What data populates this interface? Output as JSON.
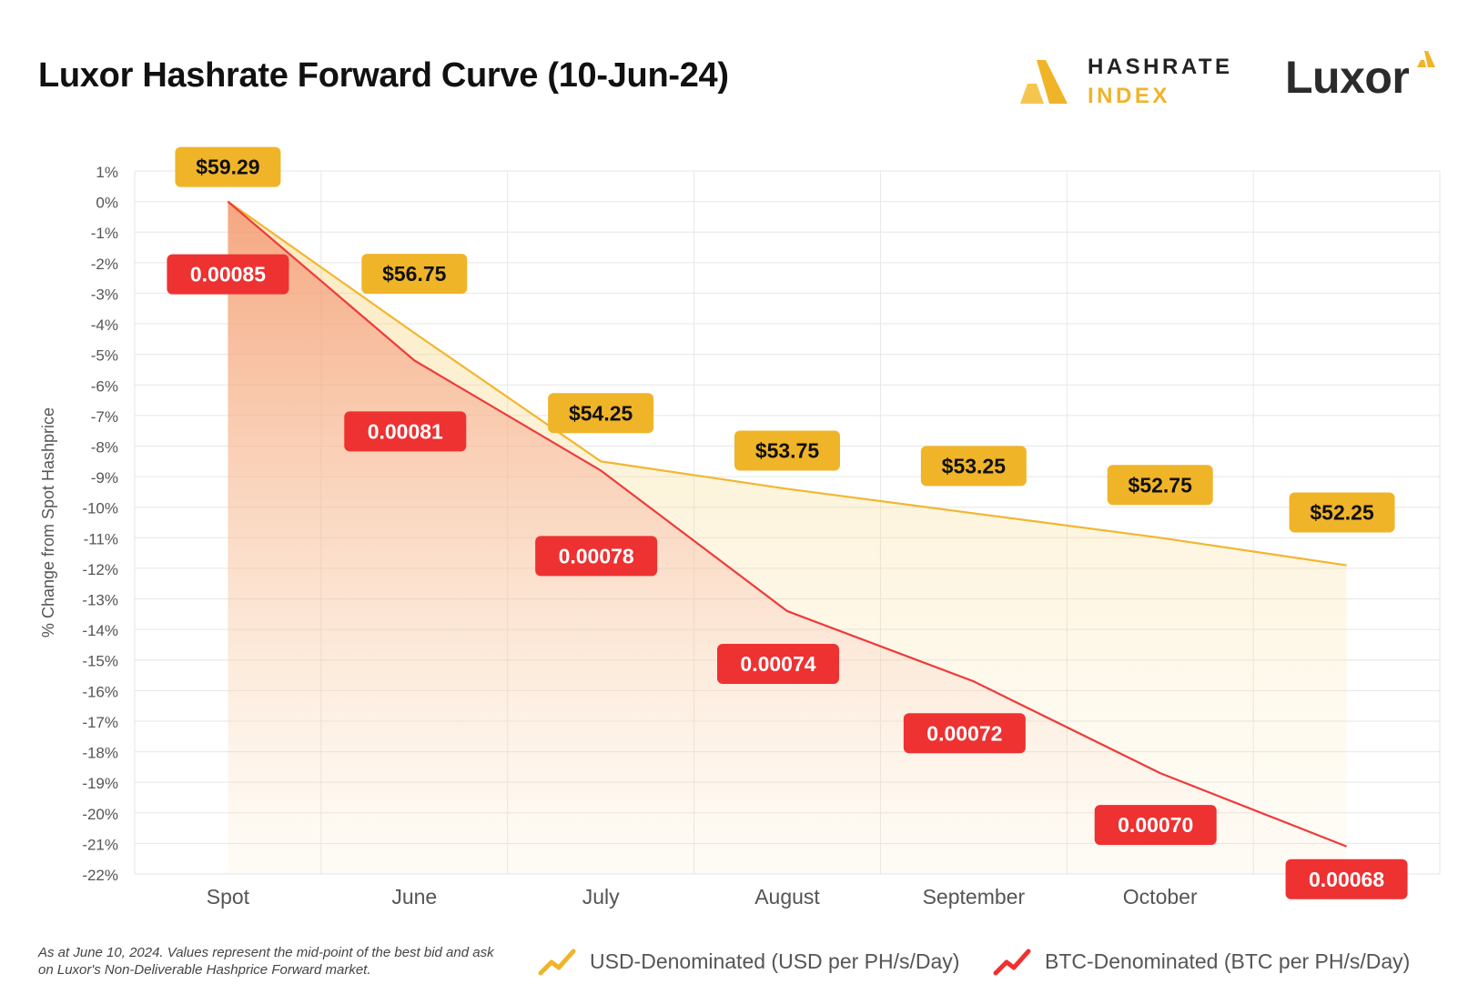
{
  "header": {
    "title": "Luxor Hashrate Forward Curve (10-Jun-24)",
    "brand_index_line1": "HASHRATE",
    "brand_index_line2": "INDEX",
    "brand_luxor": "Luxor"
  },
  "colors": {
    "usd": "#f0b429",
    "usd_line": "#f2b62f",
    "btc": "#ee3131",
    "btc_line": "#ef3a3a",
    "grid": "#e6e6e6",
    "axis_text": "#555555"
  },
  "chart_data": {
    "type": "area",
    "categories": [
      "Spot",
      "June",
      "July",
      "August",
      "September",
      "October",
      ""
    ],
    "ylabel": "% Change from Spot Hashprice",
    "ylim": [
      -22,
      1
    ],
    "yticks": [
      1,
      0,
      -1,
      -2,
      -3,
      -4,
      -5,
      -6,
      -7,
      -8,
      -9,
      -10,
      -11,
      -12,
      -13,
      -14,
      -15,
      -16,
      -17,
      -18,
      -19,
      -20,
      -21,
      -22
    ],
    "ytick_suffix": "%",
    "grid": true,
    "series": [
      {
        "name": "USD-Denominated (USD per PH/s/Day)",
        "pct_change": [
          0,
          -4.3,
          -8.5,
          -9.4,
          -10.2,
          -11.0,
          -11.9
        ],
        "labels": [
          "$59.29",
          "$56.75",
          "$54.25",
          "$53.75",
          "$53.25",
          "$52.75",
          "$52.25"
        ]
      },
      {
        "name": "BTC-Denominated (BTC per PH/s/Day)",
        "pct_change": [
          0,
          -5.2,
          -8.8,
          -13.4,
          -15.7,
          -18.7,
          -21.1
        ],
        "labels": [
          "0.00085",
          "0.00081",
          "0.00078",
          "0.00074",
          "0.00072",
          "0.00070",
          "0.00068"
        ]
      }
    ]
  },
  "footnote": "As at June 10, 2024. Values represent the mid-point of the best bid and ask on Luxor's Non-Deliverable Hashprice Forward market."
}
